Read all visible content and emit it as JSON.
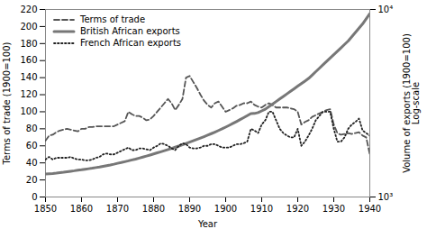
{
  "chart_data": {
    "type": "line",
    "xlabel": "Year",
    "ylabel": "Terms of trade (1900=100)",
    "y2label": "Volume of exports (1900=100)\nLog-scale",
    "x": [
      1850,
      1851,
      1852,
      1853,
      1854,
      1855,
      1856,
      1857,
      1858,
      1859,
      1860,
      1861,
      1862,
      1863,
      1864,
      1865,
      1866,
      1867,
      1868,
      1869,
      1870,
      1871,
      1872,
      1873,
      1874,
      1875,
      1876,
      1877,
      1878,
      1879,
      1880,
      1881,
      1882,
      1883,
      1884,
      1885,
      1886,
      1887,
      1888,
      1889,
      1890,
      1891,
      1892,
      1893,
      1894,
      1895,
      1896,
      1897,
      1898,
      1899,
      1900,
      1901,
      1902,
      1903,
      1904,
      1905,
      1906,
      1907,
      1908,
      1909,
      1910,
      1911,
      1912,
      1913,
      1914,
      1915,
      1916,
      1917,
      1918,
      1919,
      1920,
      1921,
      1922,
      1923,
      1924,
      1925,
      1926,
      1927,
      1928,
      1929,
      1930,
      1931,
      1932,
      1933,
      1934,
      1935,
      1936,
      1937,
      1938,
      1939,
      1940
    ],
    "series": [
      {
        "name": "Terms of trade",
        "color": "#555555",
        "line_style": "dashed",
        "values": [
          66,
          72,
          73,
          76,
          78,
          79,
          80,
          79,
          78,
          77,
          80,
          80,
          82,
          82,
          83,
          83,
          83,
          83,
          83,
          83,
          85,
          87,
          89,
          100,
          97,
          95,
          95,
          93,
          90,
          91,
          95,
          100,
          105,
          110,
          115,
          110,
          102,
          108,
          115,
          140,
          142,
          135,
          128,
          120,
          113,
          108,
          105,
          110,
          112,
          106,
          100,
          102,
          104,
          107,
          108,
          110,
          110,
          112,
          108,
          106,
          105,
          108,
          110,
          108,
          105,
          105,
          105,
          105,
          104,
          103,
          100,
          85,
          88,
          90,
          94,
          96,
          98,
          100,
          102,
          103,
          85,
          75,
          73,
          74,
          75,
          74,
          75,
          76,
          72,
          70,
          50
        ]
      },
      {
        "name": "British African exports",
        "color": "#777777",
        "line_style": "solid",
        "values": [
          27,
          27.3,
          27.6,
          28,
          28.5,
          29,
          29.6,
          30.2,
          30.8,
          31.5,
          32,
          32.6,
          33.2,
          33.8,
          34.5,
          35.2,
          36,
          36.8,
          37.6,
          38.5,
          39.5,
          40.4,
          41.4,
          42.4,
          43.5,
          44.5,
          45.6,
          46.8,
          48,
          49.2,
          50.5,
          51.8,
          53,
          54.3,
          55.7,
          57,
          58.4,
          59.8,
          61.3,
          62.8,
          64.3,
          65.9,
          67.5,
          69.1,
          70.8,
          72.5,
          74.3,
          76.1,
          78,
          79.9,
          82,
          84.1,
          86.3,
          88.5,
          90.8,
          93.1,
          95.5,
          97.9,
          98,
          99,
          101,
          103,
          106,
          109,
          112,
          115,
          118,
          121,
          124,
          127,
          130,
          133,
          136,
          139,
          143,
          147,
          151,
          155,
          159,
          163,
          167,
          171,
          175,
          179,
          183,
          188,
          193,
          198,
          203,
          209,
          215
        ]
      },
      {
        "name": "French African exports",
        "color": "#222222",
        "line_style": "dotted",
        "values": [
          44,
          47,
          44,
          46,
          46,
          46,
          46,
          47,
          45,
          44,
          44,
          43,
          43,
          44,
          46,
          47,
          50,
          51,
          50,
          50,
          52,
          54,
          56,
          58,
          55,
          55,
          57,
          57,
          56,
          55,
          58,
          60,
          63,
          62,
          60,
          57,
          55,
          60,
          63,
          62,
          58,
          57,
          57,
          58,
          60,
          60,
          62,
          62,
          60,
          58,
          58,
          58,
          60,
          62,
          62,
          63,
          65,
          80,
          78,
          75,
          85,
          90,
          100,
          100,
          90,
          80,
          75,
          72,
          70,
          70,
          80,
          60,
          65,
          72,
          80,
          90,
          95,
          100,
          100,
          100,
          80,
          65,
          65,
          70,
          80,
          85,
          88,
          92,
          78,
          75,
          72
        ]
      }
    ],
    "xlim": [
      1850,
      1940
    ],
    "xticks": [
      1850,
      1860,
      1870,
      1880,
      1890,
      1900,
      1910,
      1920,
      1930,
      1940
    ],
    "ylim": [
      0,
      220
    ],
    "yticks": [
      0,
      20,
      40,
      60,
      80,
      100,
      120,
      140,
      160,
      180,
      200,
      220
    ],
    "y2lim": [
      1000,
      10000
    ],
    "y2ticks": [
      {
        "value": 1000,
        "label": "10³"
      },
      {
        "value": 10000,
        "label": "10⁴"
      }
    ],
    "log": "y2",
    "grid": false,
    "legend": "upper left"
  }
}
